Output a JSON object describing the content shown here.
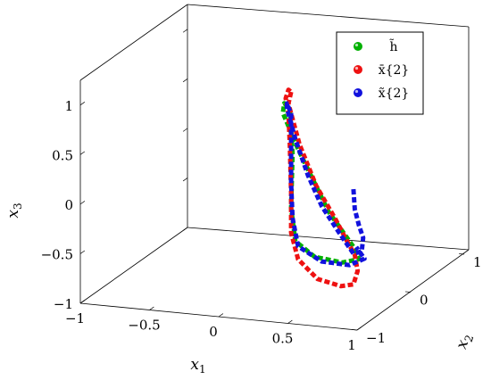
{
  "chart_data": {
    "type": "line",
    "title": "",
    "axes": {
      "x1": {
        "label": "x",
        "sub": "1",
        "lim": [
          -1,
          1
        ],
        "ticks": [
          -1,
          -0.5,
          0,
          0.5,
          1
        ],
        "tick_labels": [
          "−1",
          "−0.5",
          "0",
          "0.5",
          "1"
        ]
      },
      "x2": {
        "label": "x",
        "sub": "2",
        "lim": [
          -1,
          1
        ],
        "ticks": [
          -1,
          0,
          1
        ],
        "tick_labels": [
          "−1",
          "0",
          "1"
        ]
      },
      "x3": {
        "label": "x",
        "sub": "3",
        "lim": [
          -1,
          1.25
        ],
        "ticks": [
          -1,
          -0.5,
          0,
          0.5,
          1
        ],
        "tick_labels": [
          "−1",
          "−0.5",
          "0",
          "0.5",
          "1"
        ]
      }
    },
    "grid": false,
    "legend_position": "top-right",
    "series": [
      {
        "name": "h̃",
        "color": "#00b000",
        "style": "dashed",
        "points": [
          [
            0.32,
            -0.5,
            0.95
          ],
          [
            0.34,
            -0.5,
            0.5
          ],
          [
            0.33,
            -0.5,
            -0.05
          ],
          [
            0.36,
            -0.5,
            -0.38
          ],
          [
            0.5,
            -0.5,
            -0.52
          ],
          [
            0.7,
            -0.5,
            -0.55
          ],
          [
            0.82,
            -0.5,
            -0.5
          ],
          [
            0.78,
            -0.5,
            -0.38
          ],
          [
            0.6,
            -0.5,
            -0.05
          ],
          [
            0.38,
            -0.5,
            0.55
          ],
          [
            0.27,
            -0.5,
            0.9
          ],
          [
            0.28,
            -0.5,
            1.0
          ],
          [
            0.32,
            -0.5,
            0.95
          ]
        ]
      },
      {
        "name": "x̄{2}",
        "color": "#ee1111",
        "style": "dashed",
        "points": [
          [
            0.33,
            -0.5,
            1.12
          ],
          [
            0.31,
            -0.5,
            1.0
          ],
          [
            0.39,
            -0.5,
            0.6
          ],
          [
            0.51,
            -0.5,
            0.2
          ],
          [
            0.65,
            -0.5,
            -0.12
          ],
          [
            0.73,
            -0.5,
            -0.32
          ],
          [
            0.79,
            -0.5,
            -0.46
          ],
          [
            0.81,
            -0.5,
            -0.62
          ],
          [
            0.78,
            -0.5,
            -0.76
          ],
          [
            0.69,
            -0.5,
            -0.79
          ],
          [
            0.52,
            -0.5,
            -0.74
          ],
          [
            0.38,
            -0.5,
            -0.56
          ],
          [
            0.33,
            -0.5,
            -0.3
          ],
          [
            0.33,
            -0.5,
            0.1
          ],
          [
            0.32,
            -0.5,
            0.6
          ],
          [
            0.31,
            -0.5,
            0.9
          ],
          [
            0.29,
            -0.5,
            1.05
          ],
          [
            0.31,
            -0.5,
            1.14
          ],
          [
            0.33,
            -0.5,
            1.12
          ]
        ]
      },
      {
        "name": "x̃{2}",
        "color": "#1111dd",
        "style": "dashed",
        "points": [
          [
            0.78,
            -0.5,
            0.2
          ],
          [
            0.79,
            -0.5,
            0.0
          ],
          [
            0.82,
            -0.5,
            -0.16
          ],
          [
            0.85,
            -0.5,
            -0.28
          ],
          [
            0.84,
            -0.5,
            -0.42
          ],
          [
            0.78,
            -0.5,
            -0.45
          ],
          [
            0.66,
            -0.5,
            -0.22
          ],
          [
            0.55,
            -0.5,
            0.0
          ],
          [
            0.45,
            -0.5,
            0.3
          ],
          [
            0.36,
            -0.5,
            0.65
          ],
          [
            0.3,
            -0.5,
            0.95
          ],
          [
            0.3,
            -0.5,
            1.0
          ],
          [
            0.33,
            -0.5,
            0.9
          ],
          [
            0.33,
            -0.5,
            0.6
          ],
          [
            0.33,
            -0.5,
            0.2
          ],
          [
            0.34,
            -0.5,
            -0.15
          ],
          [
            0.38,
            -0.5,
            -0.43
          ],
          [
            0.55,
            -0.5,
            -0.56
          ],
          [
            0.75,
            -0.5,
            -0.57
          ],
          [
            0.86,
            -0.5,
            -0.49
          ],
          [
            0.8,
            -0.5,
            -0.38
          ]
        ]
      }
    ]
  }
}
